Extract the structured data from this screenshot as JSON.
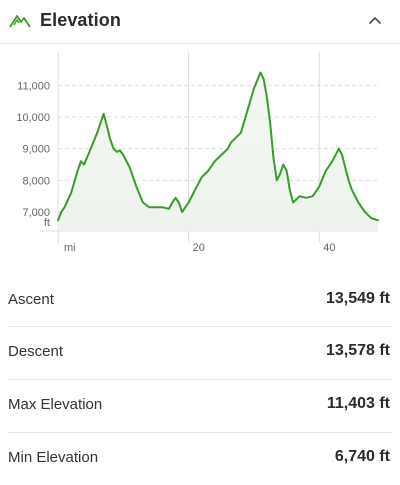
{
  "header": {
    "title": "Elevation",
    "icon": "mountain-icon",
    "toggle_icon": "chevron-up-icon"
  },
  "colors": {
    "line": "#3a9a2e",
    "fill": "#edf3ec",
    "grid": "#dcdcdc",
    "axis_text": "#666666"
  },
  "chart_data": {
    "type": "area",
    "xlabel": "mi",
    "ylabel": "ft",
    "y_ticks": [
      7000,
      8000,
      9000,
      10000,
      11000
    ],
    "y_tick_labels": [
      "7,000",
      "8,000",
      "9,000",
      "10,000",
      "11,000"
    ],
    "x_ticks": [
      20,
      40
    ],
    "x_tick_labels": [
      "20",
      "40"
    ],
    "xlim": [
      0,
      49
    ],
    "ylim": [
      6400,
      11800
    ],
    "grid": true,
    "x": [
      0,
      0.5,
      1,
      2,
      3,
      3.5,
      4,
      5,
      6,
      6.5,
      7,
      7.5,
      8,
      8.5,
      9,
      9.5,
      10,
      11,
      12,
      13,
      14,
      15,
      16,
      17,
      17.5,
      18,
      18.5,
      19,
      19.5,
      20,
      21,
      22,
      23,
      24,
      25,
      26,
      26.5,
      27,
      28,
      29,
      30,
      31,
      31.5,
      32,
      32.5,
      33,
      33.5,
      34,
      34.5,
      35,
      35.5,
      36,
      37,
      38,
      39,
      40,
      41,
      42,
      43,
      43.5,
      44,
      44.5,
      45,
      46,
      47,
      48,
      49
    ],
    "y": [
      6740,
      7000,
      7150,
      7600,
      8300,
      8600,
      8500,
      9000,
      9500,
      9800,
      10100,
      9700,
      9300,
      9000,
      8900,
      8950,
      8800,
      8400,
      7800,
      7300,
      7150,
      7150,
      7150,
      7100,
      7300,
      7450,
      7300,
      7000,
      7150,
      7300,
      7700,
      8100,
      8300,
      8600,
      8800,
      9000,
      9200,
      9300,
      9500,
      10200,
      10900,
      11403,
      11200,
      10600,
      9800,
      8700,
      8000,
      8200,
      8500,
      8300,
      7700,
      7300,
      7500,
      7450,
      7500,
      7800,
      8300,
      8600,
      9000,
      8800,
      8400,
      8000,
      7700,
      7300,
      7000,
      6800,
      6740
    ]
  },
  "stats": [
    {
      "label": "Ascent",
      "value": "13,549 ft"
    },
    {
      "label": "Descent",
      "value": "13,578 ft"
    },
    {
      "label": "Max Elevation",
      "value": "11,403 ft"
    },
    {
      "label": "Min Elevation",
      "value": "6,740 ft"
    }
  ]
}
